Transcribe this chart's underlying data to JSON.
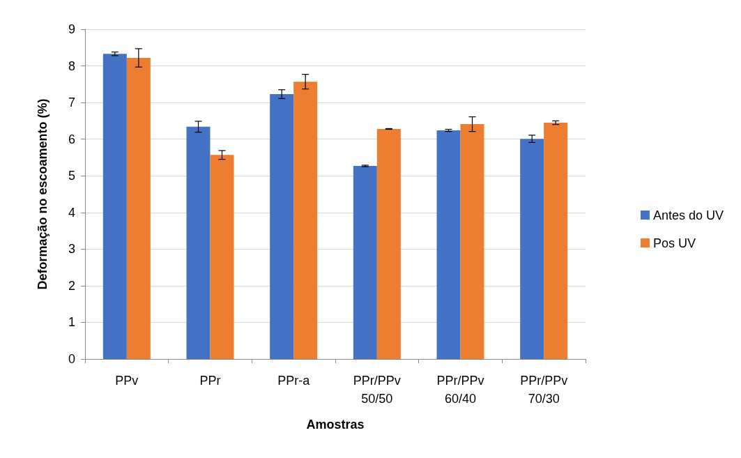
{
  "chart_data": {
    "type": "bar",
    "xlabel": "Amostras",
    "ylabel": "Deformação no escoamento (%)",
    "categories": [
      "PPv",
      "PPr",
      "PPr-a",
      "PPr/PPv\n50/50",
      "PPr/PPv\n60/40",
      "PPr/PPv\n70/30"
    ],
    "series": [
      {
        "name": "Antes do UV",
        "color": "#4472c4",
        "values": [
          8.33,
          6.34,
          7.23,
          5.27,
          6.24,
          6.01
        ],
        "errors": [
          0.05,
          0.15,
          0.12,
          0.02,
          0.03,
          0.1
        ]
      },
      {
        "name": "Pos UV",
        "color": "#ed7d31",
        "values": [
          8.22,
          5.57,
          7.57,
          6.28,
          6.41,
          6.45
        ],
        "errors": [
          0.25,
          0.12,
          0.2,
          0.01,
          0.2,
          0.05
        ]
      }
    ],
    "ylim": [
      0,
      9
    ],
    "yticks": [
      0,
      1,
      2,
      3,
      4,
      5,
      6,
      7,
      8,
      9
    ],
    "grid": "y",
    "legend": "right"
  }
}
